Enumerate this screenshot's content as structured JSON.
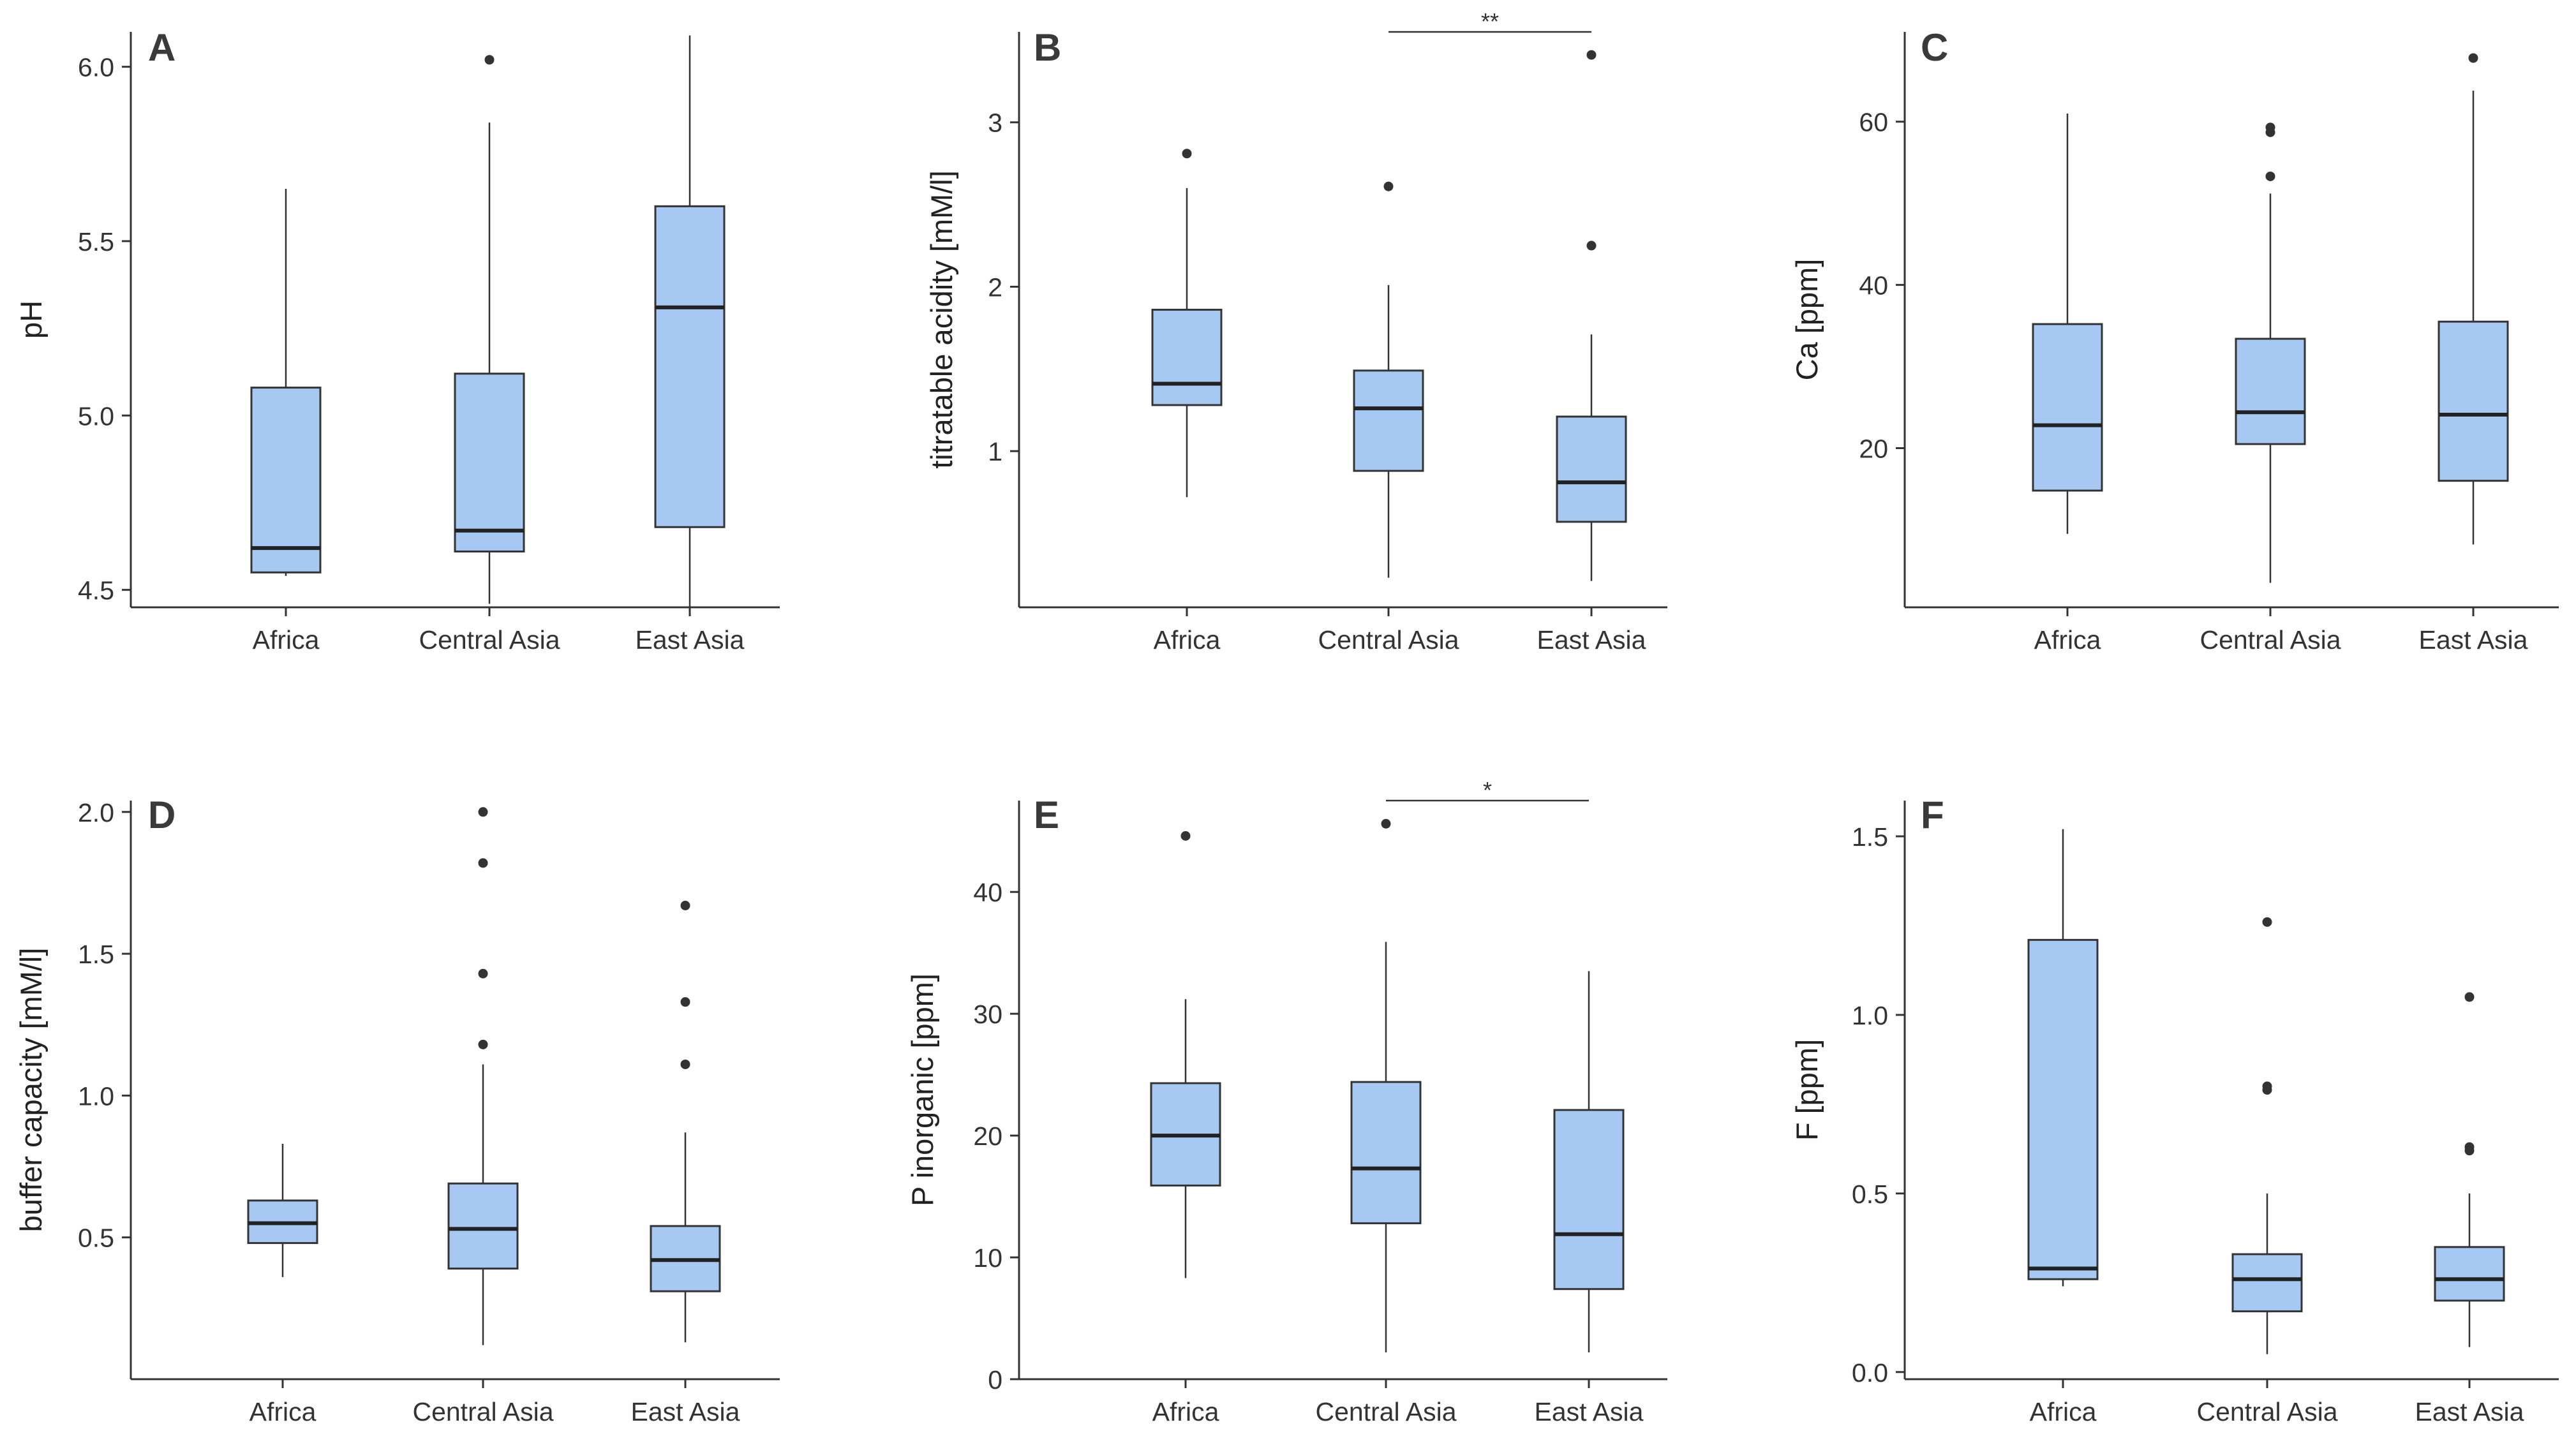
{
  "colors": {
    "box_fill": "#a6c8f3",
    "box_stroke": "#333333",
    "axis": "#333333",
    "outlier": "#333333"
  },
  "chart_data": [
    {
      "panel": "A",
      "type": "box",
      "ylabel": "pH",
      "ylim": [
        4.45,
        6.1
      ],
      "yticks": [
        4.5,
        5.0,
        5.5,
        6.0
      ],
      "ytick_labels": [
        "4.5",
        "5.0",
        "5.5",
        "6.0"
      ],
      "categories": [
        "Africa",
        "Central Asia",
        "East Asia"
      ],
      "boxes": [
        {
          "whisker_low": 4.54,
          "q1": 4.55,
          "median": 4.62,
          "q3": 5.08,
          "whisker_high": 5.65,
          "outliers": []
        },
        {
          "whisker_low": 4.46,
          "q1": 4.61,
          "median": 4.67,
          "q3": 5.12,
          "whisker_high": 5.84,
          "outliers": [
            6.02
          ]
        },
        {
          "whisker_low": 4.45,
          "q1": 4.68,
          "median": 5.31,
          "q3": 5.6,
          "whisker_high": 6.09,
          "outliers": []
        }
      ],
      "annotations": []
    },
    {
      "panel": "B",
      "type": "box",
      "ylabel": "titratable acidity [mM/l]",
      "ylim": [
        0.05,
        3.55
      ],
      "yticks": [
        1,
        2,
        3
      ],
      "ytick_labels": [
        "1",
        "2",
        "3"
      ],
      "categories": [
        "Africa",
        "Central Asia",
        "East Asia"
      ],
      "boxes": [
        {
          "whisker_low": 0.72,
          "q1": 1.28,
          "median": 1.41,
          "q3": 1.86,
          "whisker_high": 2.6,
          "outliers": [
            2.81
          ]
        },
        {
          "whisker_low": 0.23,
          "q1": 0.88,
          "median": 1.26,
          "q3": 1.49,
          "whisker_high": 2.01,
          "outliers": [
            2.61
          ]
        },
        {
          "whisker_low": 0.21,
          "q1": 0.57,
          "median": 0.81,
          "q3": 1.21,
          "whisker_high": 1.71,
          "outliers": [
            2.25,
            3.41
          ]
        }
      ],
      "annotations": [
        {
          "from": 1,
          "to": 2,
          "label": "**",
          "y": 3.55
        }
      ]
    },
    {
      "panel": "C",
      "type": "box",
      "ylabel": "Ca [ppm]",
      "ylim": [
        0.5,
        71
      ],
      "yticks": [
        20,
        40,
        60
      ],
      "ytick_labels": [
        "20",
        "40",
        "60"
      ],
      "categories": [
        "Africa",
        "Central Asia",
        "East Asia"
      ],
      "boxes": [
        {
          "whisker_low": 9.5,
          "q1": 14.8,
          "median": 22.8,
          "q3": 35.2,
          "whisker_high": 61.0,
          "outliers": []
        },
        {
          "whisker_low": 3.5,
          "q1": 20.5,
          "median": 24.4,
          "q3": 33.4,
          "whisker_high": 51.2,
          "outliers": [
            53.3,
            58.7,
            59.3
          ]
        },
        {
          "whisker_low": 8.2,
          "q1": 16.0,
          "median": 24.1,
          "q3": 35.5,
          "whisker_high": 63.8,
          "outliers": [
            67.8
          ]
        }
      ],
      "annotations": []
    },
    {
      "panel": "D",
      "type": "box",
      "ylabel": "buffer capacity [mM/l]",
      "ylim": [
        0.0,
        2.04
      ],
      "yticks": [
        0.5,
        1.0,
        1.5,
        2.0
      ],
      "ytick_labels": [
        "0.5",
        "1.0",
        "1.5",
        "2.0"
      ],
      "categories": [
        "Africa",
        "Central Asia",
        "East Asia"
      ],
      "boxes": [
        {
          "whisker_low": 0.36,
          "q1": 0.48,
          "median": 0.55,
          "q3": 0.63,
          "whisker_high": 0.83,
          "outliers": []
        },
        {
          "whisker_low": 0.12,
          "q1": 0.39,
          "median": 0.53,
          "q3": 0.69,
          "whisker_high": 1.11,
          "outliers": [
            1.18,
            1.43,
            1.82,
            2.0
          ]
        },
        {
          "whisker_low": 0.13,
          "q1": 0.31,
          "median": 0.42,
          "q3": 0.54,
          "whisker_high": 0.87,
          "outliers": [
            1.11,
            1.33,
            1.67
          ]
        }
      ],
      "annotations": []
    },
    {
      "panel": "E",
      "type": "box",
      "ylabel": "P inorganic [ppm]",
      "ylim": [
        0,
        47.5
      ],
      "yticks": [
        0,
        10,
        20,
        30,
        40
      ],
      "ytick_labels": [
        "0",
        "10",
        "20",
        "30",
        "40"
      ],
      "categories": [
        "Africa",
        "Central Asia",
        "East Asia"
      ],
      "boxes": [
        {
          "whisker_low": 8.3,
          "q1": 15.9,
          "median": 20.0,
          "q3": 24.3,
          "whisker_high": 31.2,
          "outliers": [
            44.6
          ]
        },
        {
          "whisker_low": 2.2,
          "q1": 12.8,
          "median": 17.3,
          "q3": 24.4,
          "whisker_high": 35.9,
          "outliers": [
            45.6
          ]
        },
        {
          "whisker_low": 2.2,
          "q1": 7.4,
          "median": 11.9,
          "q3": 22.1,
          "whisker_high": 33.5,
          "outliers": []
        }
      ],
      "annotations": [
        {
          "from": 1,
          "to": 2,
          "label": "*",
          "y": 47.5
        }
      ]
    },
    {
      "panel": "F",
      "type": "box",
      "ylabel": "F [ppm]",
      "ylim": [
        -0.02,
        1.6
      ],
      "yticks": [
        0.0,
        0.5,
        1.0,
        1.5
      ],
      "ytick_labels": [
        "0.0",
        "0.5",
        "1.0",
        "1.5"
      ],
      "categories": [
        "Africa",
        "Central Asia",
        "East Asia"
      ],
      "boxes": [
        {
          "whisker_low": 0.24,
          "q1": 0.26,
          "median": 0.29,
          "q3": 1.21,
          "whisker_high": 1.52,
          "outliers": []
        },
        {
          "whisker_low": 0.05,
          "q1": 0.17,
          "median": 0.26,
          "q3": 0.33,
          "whisker_high": 0.5,
          "outliers": [
            0.79,
            0.8,
            1.26
          ]
        },
        {
          "whisker_low": 0.07,
          "q1": 0.2,
          "median": 0.26,
          "q3": 0.35,
          "whisker_high": 0.5,
          "outliers": [
            0.62,
            0.63,
            1.05
          ]
        }
      ],
      "annotations": []
    }
  ]
}
